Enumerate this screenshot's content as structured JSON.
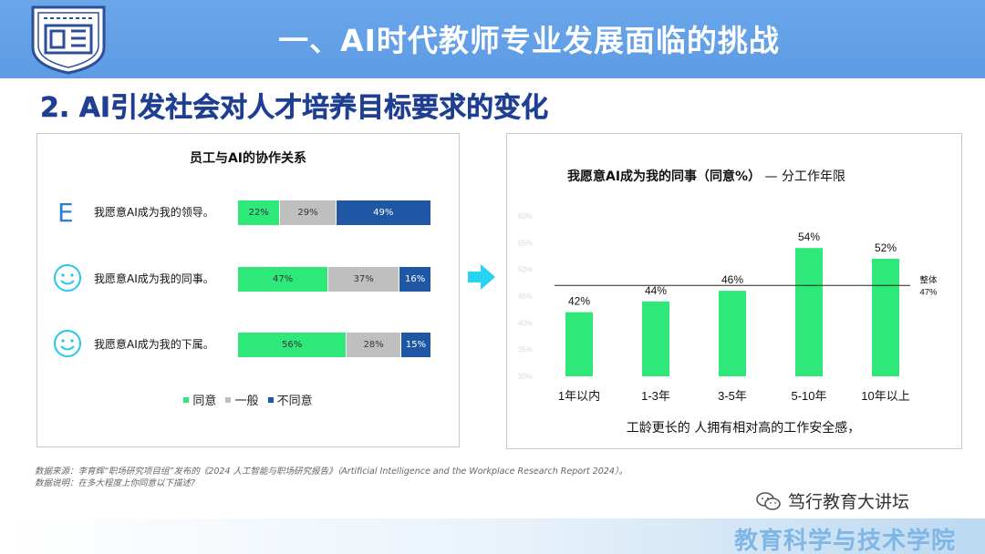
{
  "header": {
    "main_title": "一、AI时代教师专业发展面临的挑战",
    "subtitle": "2. AI引发社会对人才培养目标要求的变化"
  },
  "left_panel": {
    "title": "员工与AI的协作关系",
    "rows": [
      {
        "icon": "letter-e-icon",
        "icon_text": "E",
        "label": "我愿意AI成为我的领导。",
        "segments": [
          {
            "label": "22%",
            "value": 22
          },
          {
            "label": "29%",
            "value": 29
          },
          {
            "label": "49%",
            "value": 49
          }
        ]
      },
      {
        "icon": "smiley-icon",
        "label": "我愿意AI成为我的同事。",
        "segments": [
          {
            "label": "47%",
            "value": 47
          },
          {
            "label": "37%",
            "value": 37
          },
          {
            "label": "16%",
            "value": 16
          }
        ]
      },
      {
        "icon": "smiley-icon",
        "label": "我愿意AI成为我的下属。",
        "segments": [
          {
            "label": "56%",
            "value": 56
          },
          {
            "label": "28%",
            "value": 28
          },
          {
            "label": "15%",
            "value": 15
          }
        ]
      }
    ],
    "legend": [
      {
        "label": "同意",
        "color": "#2ee87a"
      },
      {
        "label": "一般",
        "color": "#bfbfbf"
      },
      {
        "label": "不同意",
        "color": "#1f57a4"
      }
    ]
  },
  "right_panel": {
    "title_bold": "我愿意AI成为我的同事（同意%）",
    "title_rest": " — 分工作年限",
    "note": "工龄更长的 人拥有相对高的工作安全感，"
  },
  "chart_data": {
    "type": "bar",
    "categories": [
      "1年以内",
      "1-3年",
      "3-5年",
      "5-10年",
      "10年以上"
    ],
    "values": [
      42,
      44,
      46,
      54,
      52
    ],
    "value_labels": [
      "42%",
      "44%",
      "46%",
      "54%",
      "52%"
    ],
    "y_ticks": [
      "60%",
      "55%",
      "50%",
      "45%",
      "40%",
      "35%",
      "30%"
    ],
    "ylim": [
      30,
      60
    ],
    "reference_line": {
      "label_line1": "整体",
      "label_line2": "47%",
      "value": 47
    },
    "bar_color": "#2ee87a",
    "grid": false
  },
  "source": {
    "line1": "数据来源：李育辉“职场研究项目组”发布的《2024 人工智能与职场研究报告》（Artificial Intelligence and the Workplace Research Report 2024）。",
    "line2": "数据说明：在多大程度上你同意以下描述?"
  },
  "watermark": {
    "text": "笃行教育大讲坛",
    "icon": "wechat-icon"
  },
  "footer": {
    "text": "教育科学与技术学院"
  },
  "colors": {
    "header_blue": "#5d9be4",
    "subtitle_blue": "#1f3f92",
    "arrow_cyan": "#27d3f0",
    "icon_blue": "#2a8fd8"
  }
}
